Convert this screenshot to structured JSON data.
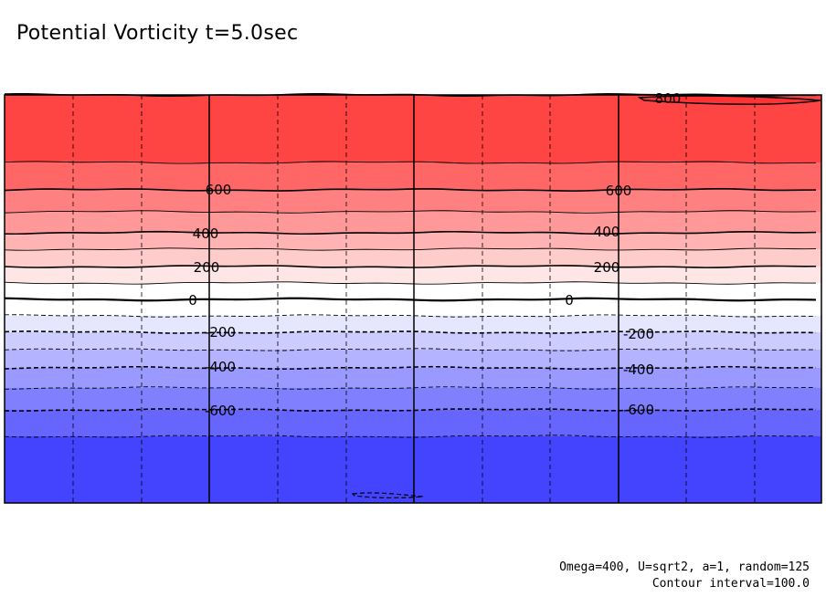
{
  "title": "Potential Vorticity t=5.0sec",
  "footnote": {
    "params": "Omega=400, U=sqrt2, a=1, random=125",
    "interval": "Contour interval=100.0"
  },
  "chart_data": {
    "type": "contour",
    "title": "Potential Vorticity t=5.0sec",
    "contour_interval": 100.0,
    "contour_levels": [
      -700,
      -600,
      -500,
      -400,
      -300,
      -200,
      -100,
      0,
      100,
      200,
      300,
      400,
      500,
      600,
      700,
      800
    ],
    "fill_bands": [
      {
        "min": 700,
        "max": 800,
        "color": "#ff4444"
      },
      {
        "min": 600,
        "max": 700,
        "color": "#ff6666"
      },
      {
        "min": 500,
        "max": 600,
        "color": "#ff8080"
      },
      {
        "min": 400,
        "max": 500,
        "color": "#ff9999"
      },
      {
        "min": 300,
        "max": 400,
        "color": "#ffb3b3"
      },
      {
        "min": 200,
        "max": 300,
        "color": "#ffcccc"
      },
      {
        "min": 100,
        "max": 200,
        "color": "#ffe6e6"
      },
      {
        "min": 0,
        "max": 100,
        "color": "#ffffff"
      },
      {
        "min": -100,
        "max": 0,
        "color": "#ffffff"
      },
      {
        "min": -200,
        "max": -100,
        "color": "#e6e6ff"
      },
      {
        "min": -300,
        "max": -200,
        "color": "#ccccff"
      },
      {
        "min": -400,
        "max": -300,
        "color": "#b3b3ff"
      },
      {
        "min": -500,
        "max": -400,
        "color": "#9999ff"
      },
      {
        "min": -600,
        "max": -500,
        "color": "#8080ff"
      },
      {
        "min": -700,
        "max": -600,
        "color": "#6666ff"
      },
      {
        "min": -800,
        "max": -700,
        "color": "#4444ff"
      }
    ],
    "contour_labels": [
      {
        "text": "800",
        "value": 800
      },
      {
        "text": "600",
        "value": 600
      },
      {
        "text": "600",
        "value": 600
      },
      {
        "text": "400",
        "value": 400
      },
      {
        "text": "400",
        "value": 400
      },
      {
        "text": "200",
        "value": 200
      },
      {
        "text": "200",
        "value": 200
      },
      {
        "text": "0",
        "value": 0
      },
      {
        "text": "0",
        "value": 0
      },
      {
        "text": "-200",
        "value": -200
      },
      {
        "text": "-200",
        "value": -200
      },
      {
        "text": "-400",
        "value": -400
      },
      {
        "text": "-400",
        "value": -400
      },
      {
        "text": "-600",
        "value": -600
      },
      {
        "text": "-600",
        "value": -600
      }
    ],
    "negative_contours_dashed": true,
    "grid": true
  }
}
